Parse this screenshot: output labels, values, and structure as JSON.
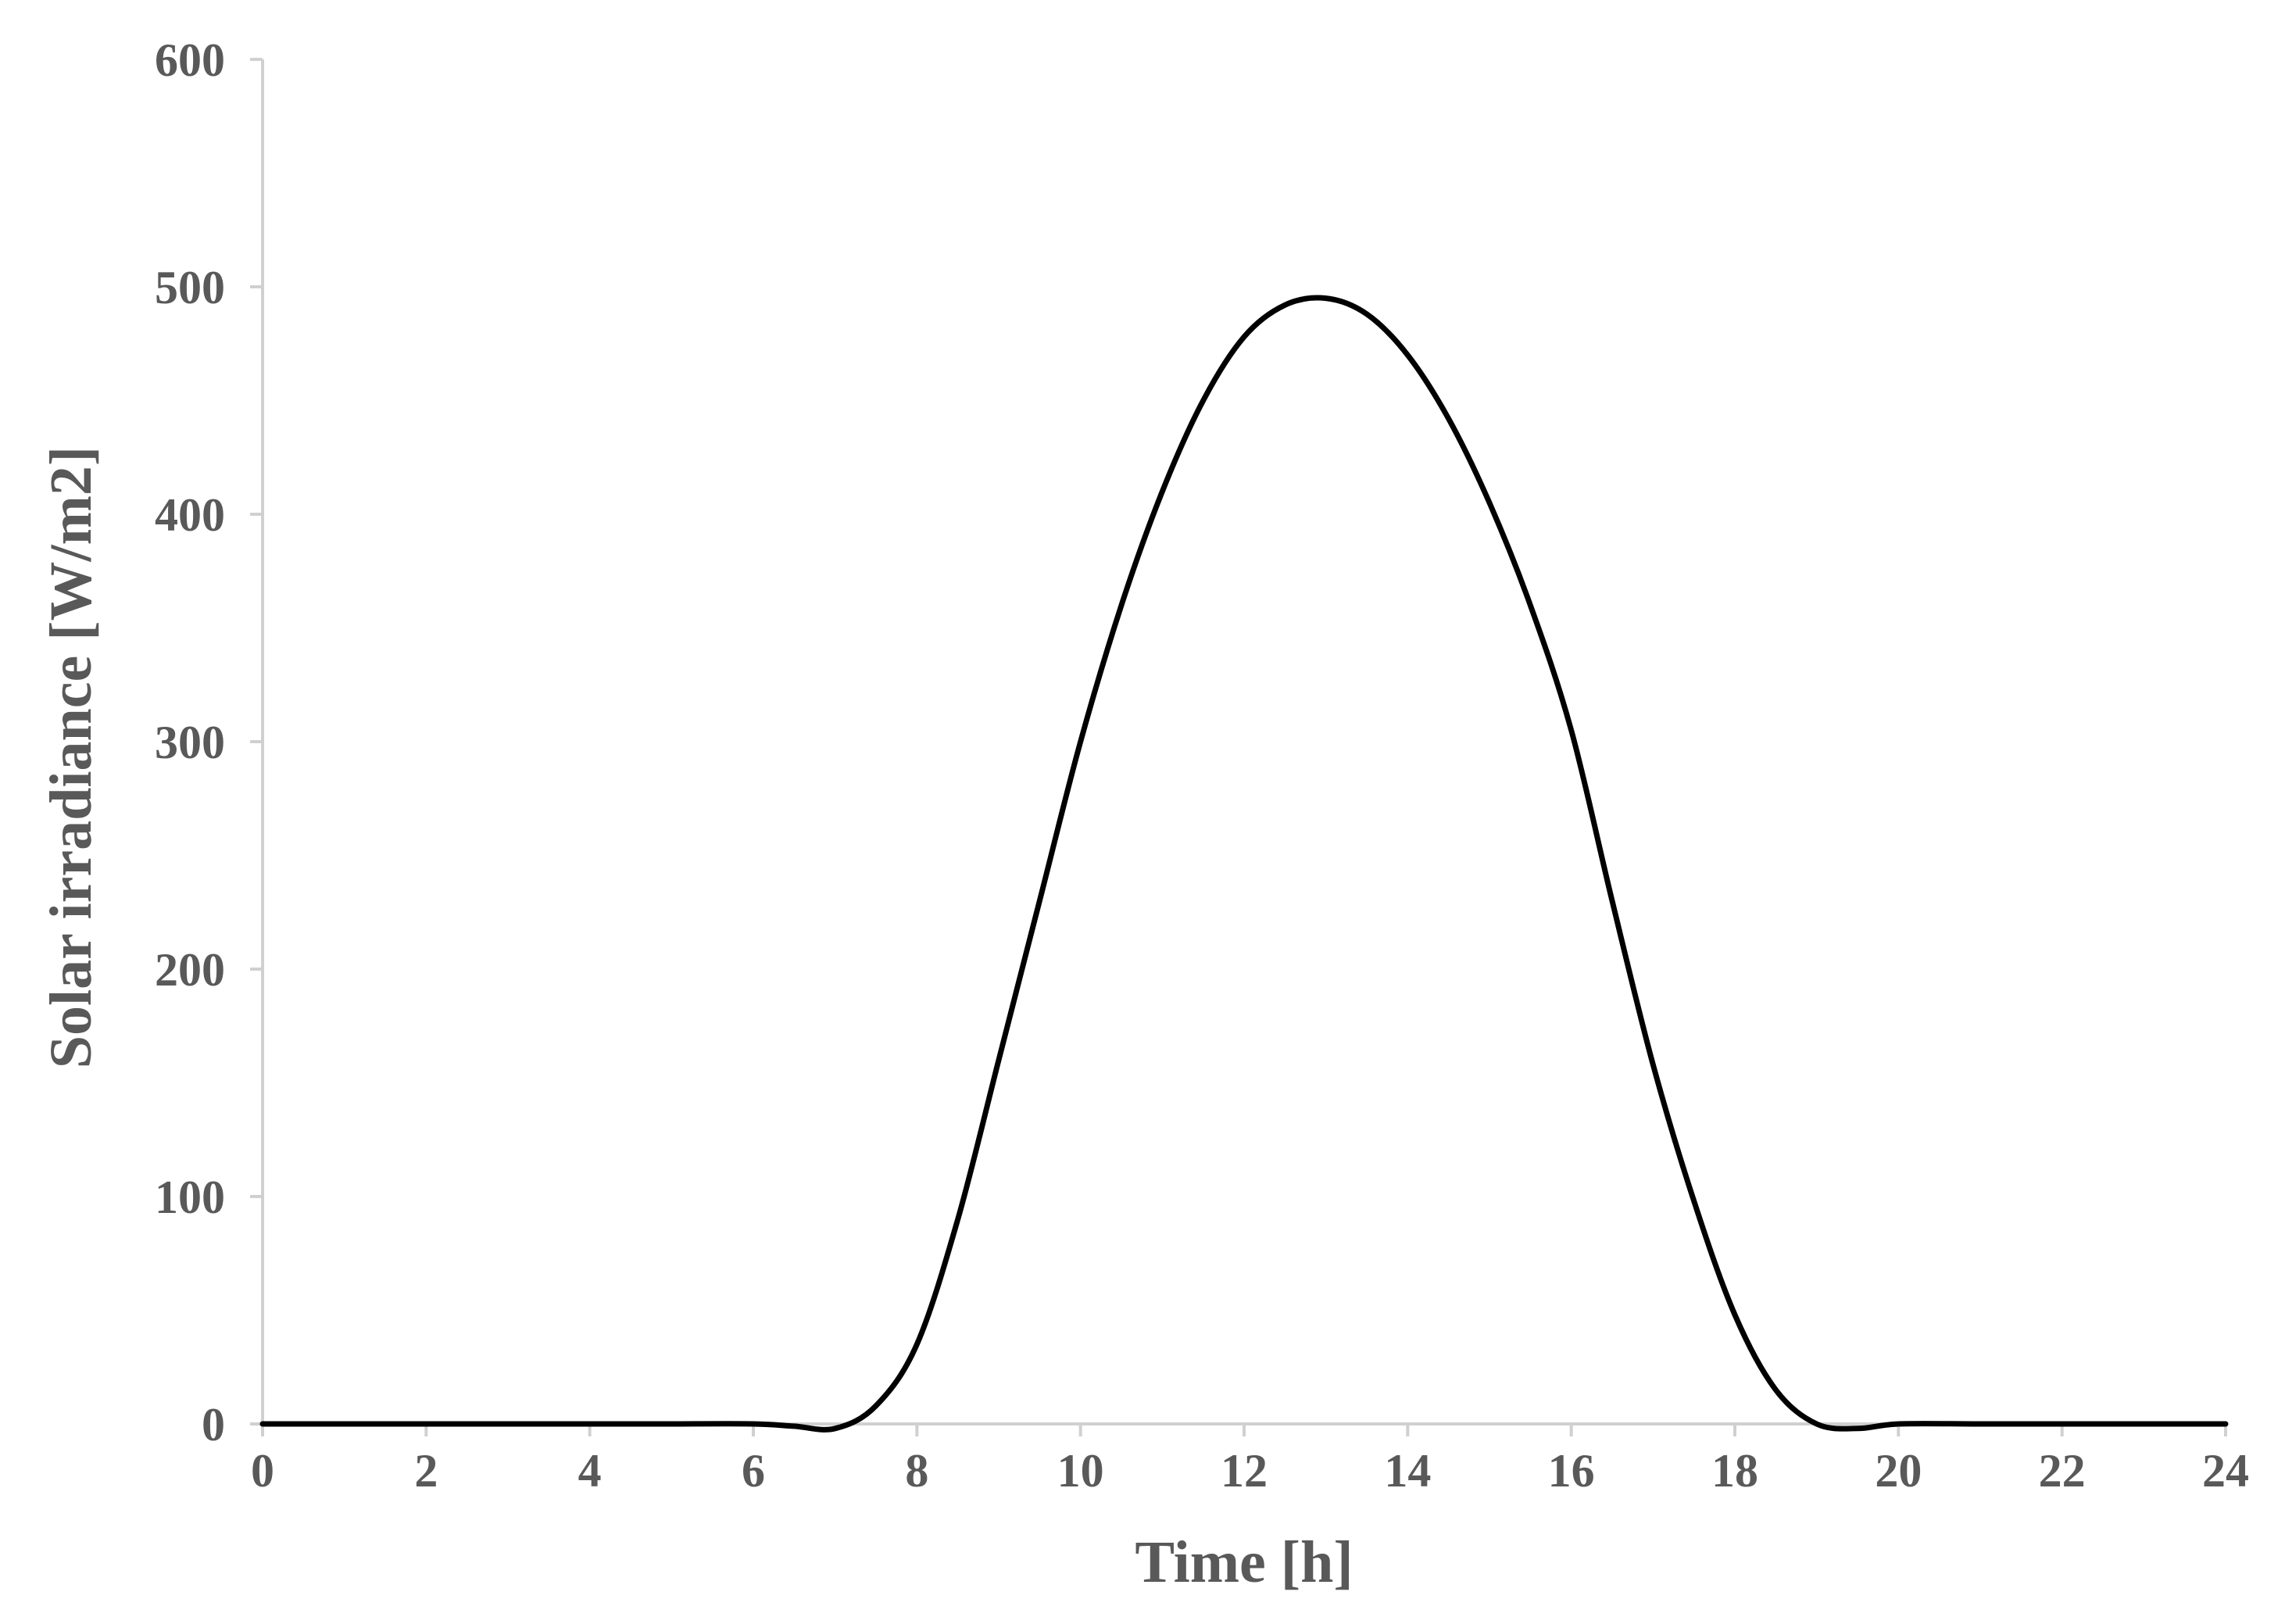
{
  "chart_data": {
    "type": "line",
    "title": "",
    "xlabel": "Time [h]",
    "ylabel": "Solar irradiance [W/m2]",
    "xlim": [
      0,
      24
    ],
    "ylim": [
      0,
      600
    ],
    "x_ticks": [
      0,
      2,
      4,
      6,
      8,
      10,
      12,
      14,
      16,
      18,
      20,
      22,
      24
    ],
    "y_ticks": [
      0,
      100,
      200,
      300,
      400,
      500,
      600
    ],
    "grid": false,
    "legend": "none",
    "series": [
      {
        "color": "#000000",
        "x": [
          0,
          1,
          2,
          3,
          4,
          5,
          6,
          6.5,
          7,
          7.5,
          8,
          8.5,
          9,
          9.5,
          10,
          10.5,
          11,
          11.5,
          12,
          12.5,
          13,
          13.5,
          14,
          14.5,
          15,
          15.5,
          16,
          16.5,
          17,
          17.5,
          18,
          18.5,
          19,
          19.5,
          20,
          21,
          22,
          23,
          24
        ],
        "y": [
          0,
          0,
          0,
          0,
          0,
          0,
          0,
          -1,
          -2,
          8,
          35,
          90,
          160,
          230,
          300,
          360,
          410,
          450,
          478,
          492,
          495,
          488,
          470,
          442,
          405,
          360,
          305,
          230,
          158,
          98,
          48,
          15,
          0,
          -2,
          0,
          0,
          0,
          0,
          0
        ]
      }
    ]
  }
}
